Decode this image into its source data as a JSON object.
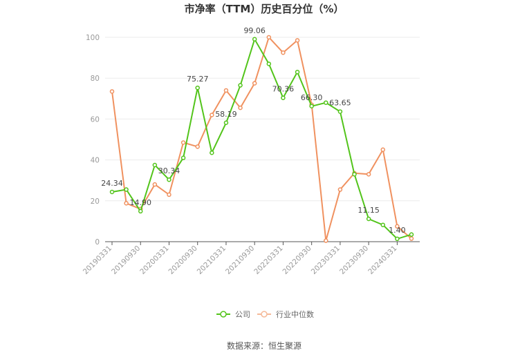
{
  "chart_data": {
    "type": "line",
    "title": "市净率（TTM）历史百分位（%）",
    "xlabel": "",
    "ylabel": "",
    "ylim": [
      0,
      100
    ],
    "yticks": [
      0,
      20,
      40,
      60,
      80,
      100
    ],
    "x_tick_labels": [
      "20190331",
      "20190930",
      "20200331",
      "20200930",
      "20210331",
      "20210930",
      "20220331",
      "20220930",
      "20230331",
      "20230930",
      "20240331"
    ],
    "categories": [
      "20190331",
      "20190630",
      "20190930",
      "20191231",
      "20200331",
      "20200630",
      "20200930",
      "20201231",
      "20210331",
      "20210630",
      "20210930",
      "20211231",
      "20220331",
      "20220630",
      "20220930",
      "20221231",
      "20230331",
      "20230630",
      "20230930",
      "20231231",
      "20240331",
      "20240630"
    ],
    "grid": true,
    "legend_position": "bottom",
    "series": [
      {
        "name": "公司",
        "color": "#52c41a",
        "values": [
          24.34,
          25.5,
          14.9,
          37.5,
          30.34,
          41.0,
          75.27,
          43.5,
          58.19,
          76.5,
          99.06,
          87.0,
          70.36,
          83.0,
          66.3,
          68.0,
          63.65,
          33.0,
          11.15,
          8.2,
          1.4,
          3.5
        ],
        "labels": {
          "0": "24.34",
          "2": "14.90",
          "4": "30.34",
          "6": "75.27",
          "8": "58.19",
          "10": "99.06",
          "12": "70.36",
          "14": "66.30",
          "16": "63.65",
          "18": "11.15",
          "20": "1.40"
        }
      },
      {
        "name": "行业中位数",
        "color": "#f0915f",
        "values": [
          73.5,
          18.8,
          16.0,
          28.0,
          23.0,
          48.5,
          46.5,
          62.0,
          74.0,
          65.5,
          77.5,
          100.0,
          92.5,
          98.5,
          67.0,
          0.5,
          25.5,
          33.5,
          33.0,
          45.0,
          7.5,
          1.5
        ]
      }
    ]
  },
  "source_text": "数据来源：恒生聚源"
}
